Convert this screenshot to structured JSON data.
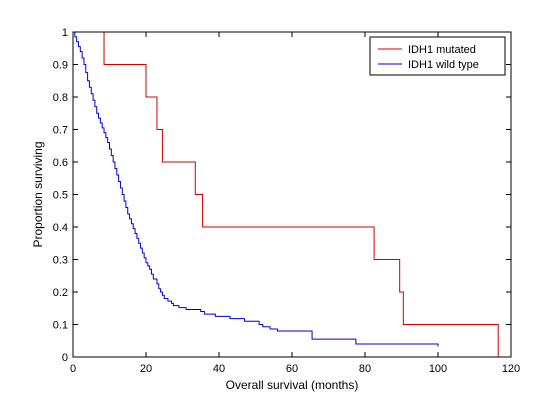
{
  "chart_data": {
    "type": "line",
    "title": "",
    "xlabel": "Overall survival (months)",
    "ylabel": "Proportion surviving",
    "xlim": [
      0,
      120
    ],
    "ylim": [
      0,
      1
    ],
    "x_ticks": [
      0,
      20,
      40,
      60,
      80,
      100,
      120
    ],
    "y_ticks": [
      0,
      0.1,
      0.2,
      0.3,
      0.4,
      0.5,
      0.6,
      0.7,
      0.8,
      0.9,
      1
    ],
    "x_tick_labels": [
      "0",
      "20",
      "40",
      "60",
      "80",
      "100",
      "120"
    ],
    "y_tick_labels": [
      "0",
      "0.1",
      "0.2",
      "0.3",
      "0.4",
      "0.5",
      "0.6",
      "0.7",
      "0.8",
      "0.9",
      "1"
    ],
    "grid": false,
    "legend_position": "top-right",
    "step": true,
    "series": [
      {
        "name": "IDH1 mutated",
        "color": "#cc0000",
        "x": [
          0,
          8.5,
          20,
          23,
          24.5,
          33.5,
          35.5,
          82.5,
          89.5,
          90.5,
          116.5
        ],
        "y": [
          1,
          0.9,
          0.8,
          0.7,
          0.6,
          0.5,
          0.4,
          0.3,
          0.2,
          0.1,
          0
        ]
      },
      {
        "name": "IDH1 wild type",
        "color": "#0000cc",
        "x": [
          0,
          0.5,
          1,
          1.5,
          2,
          2.5,
          3,
          3.5,
          4,
          4.5,
          5,
          5.5,
          6,
          6.5,
          7,
          7.5,
          8,
          8.5,
          9,
          9.5,
          10,
          10.5,
          11,
          11.5,
          12,
          12.5,
          13,
          13.5,
          14,
          14.5,
          15,
          15.5,
          16,
          16.5,
          17,
          17.5,
          18,
          18.5,
          19,
          19.5,
          20,
          20.5,
          21,
          21.5,
          22,
          23,
          23.5,
          24,
          24.5,
          25,
          26,
          27,
          27.5,
          29,
          31,
          35,
          36,
          39,
          43,
          47,
          51,
          52,
          54,
          56,
          65.5,
          77.5,
          100
        ],
        "y": [
          1,
          0.985,
          0.97,
          0.955,
          0.94,
          0.92,
          0.9,
          0.875,
          0.85,
          0.83,
          0.81,
          0.79,
          0.77,
          0.75,
          0.735,
          0.72,
          0.705,
          0.69,
          0.675,
          0.66,
          0.64,
          0.62,
          0.6,
          0.58,
          0.56,
          0.54,
          0.52,
          0.5,
          0.48,
          0.46,
          0.44,
          0.425,
          0.41,
          0.395,
          0.38,
          0.365,
          0.35,
          0.335,
          0.32,
          0.305,
          0.29,
          0.28,
          0.27,
          0.255,
          0.24,
          0.225,
          0.21,
          0.2,
          0.19,
          0.18,
          0.172,
          0.165,
          0.158,
          0.152,
          0.146,
          0.14,
          0.132,
          0.125,
          0.118,
          0.11,
          0.1,
          0.093,
          0.086,
          0.08,
          0.055,
          0.04,
          0.032
        ]
      }
    ]
  }
}
